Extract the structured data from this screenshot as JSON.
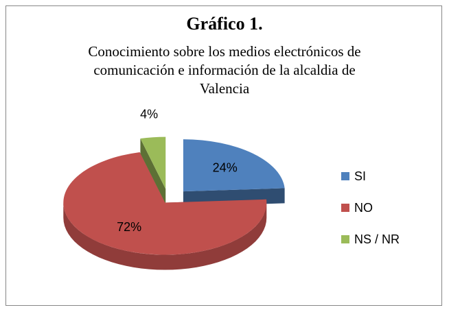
{
  "chart_data": {
    "type": "pie",
    "title": "Gráfico 1.",
    "subtitle": "Conocimiento sobre los medios electrónicos de comunicación e información de la alcaldia de Valencia",
    "categories": [
      "SI",
      "NO",
      "NS / NR"
    ],
    "values": [
      24,
      72,
      4
    ],
    "value_labels": [
      "24%",
      "72%",
      "4%"
    ],
    "colors": [
      "#4f81bd",
      "#c0504d",
      "#9bbb59"
    ],
    "legend": "right"
  }
}
